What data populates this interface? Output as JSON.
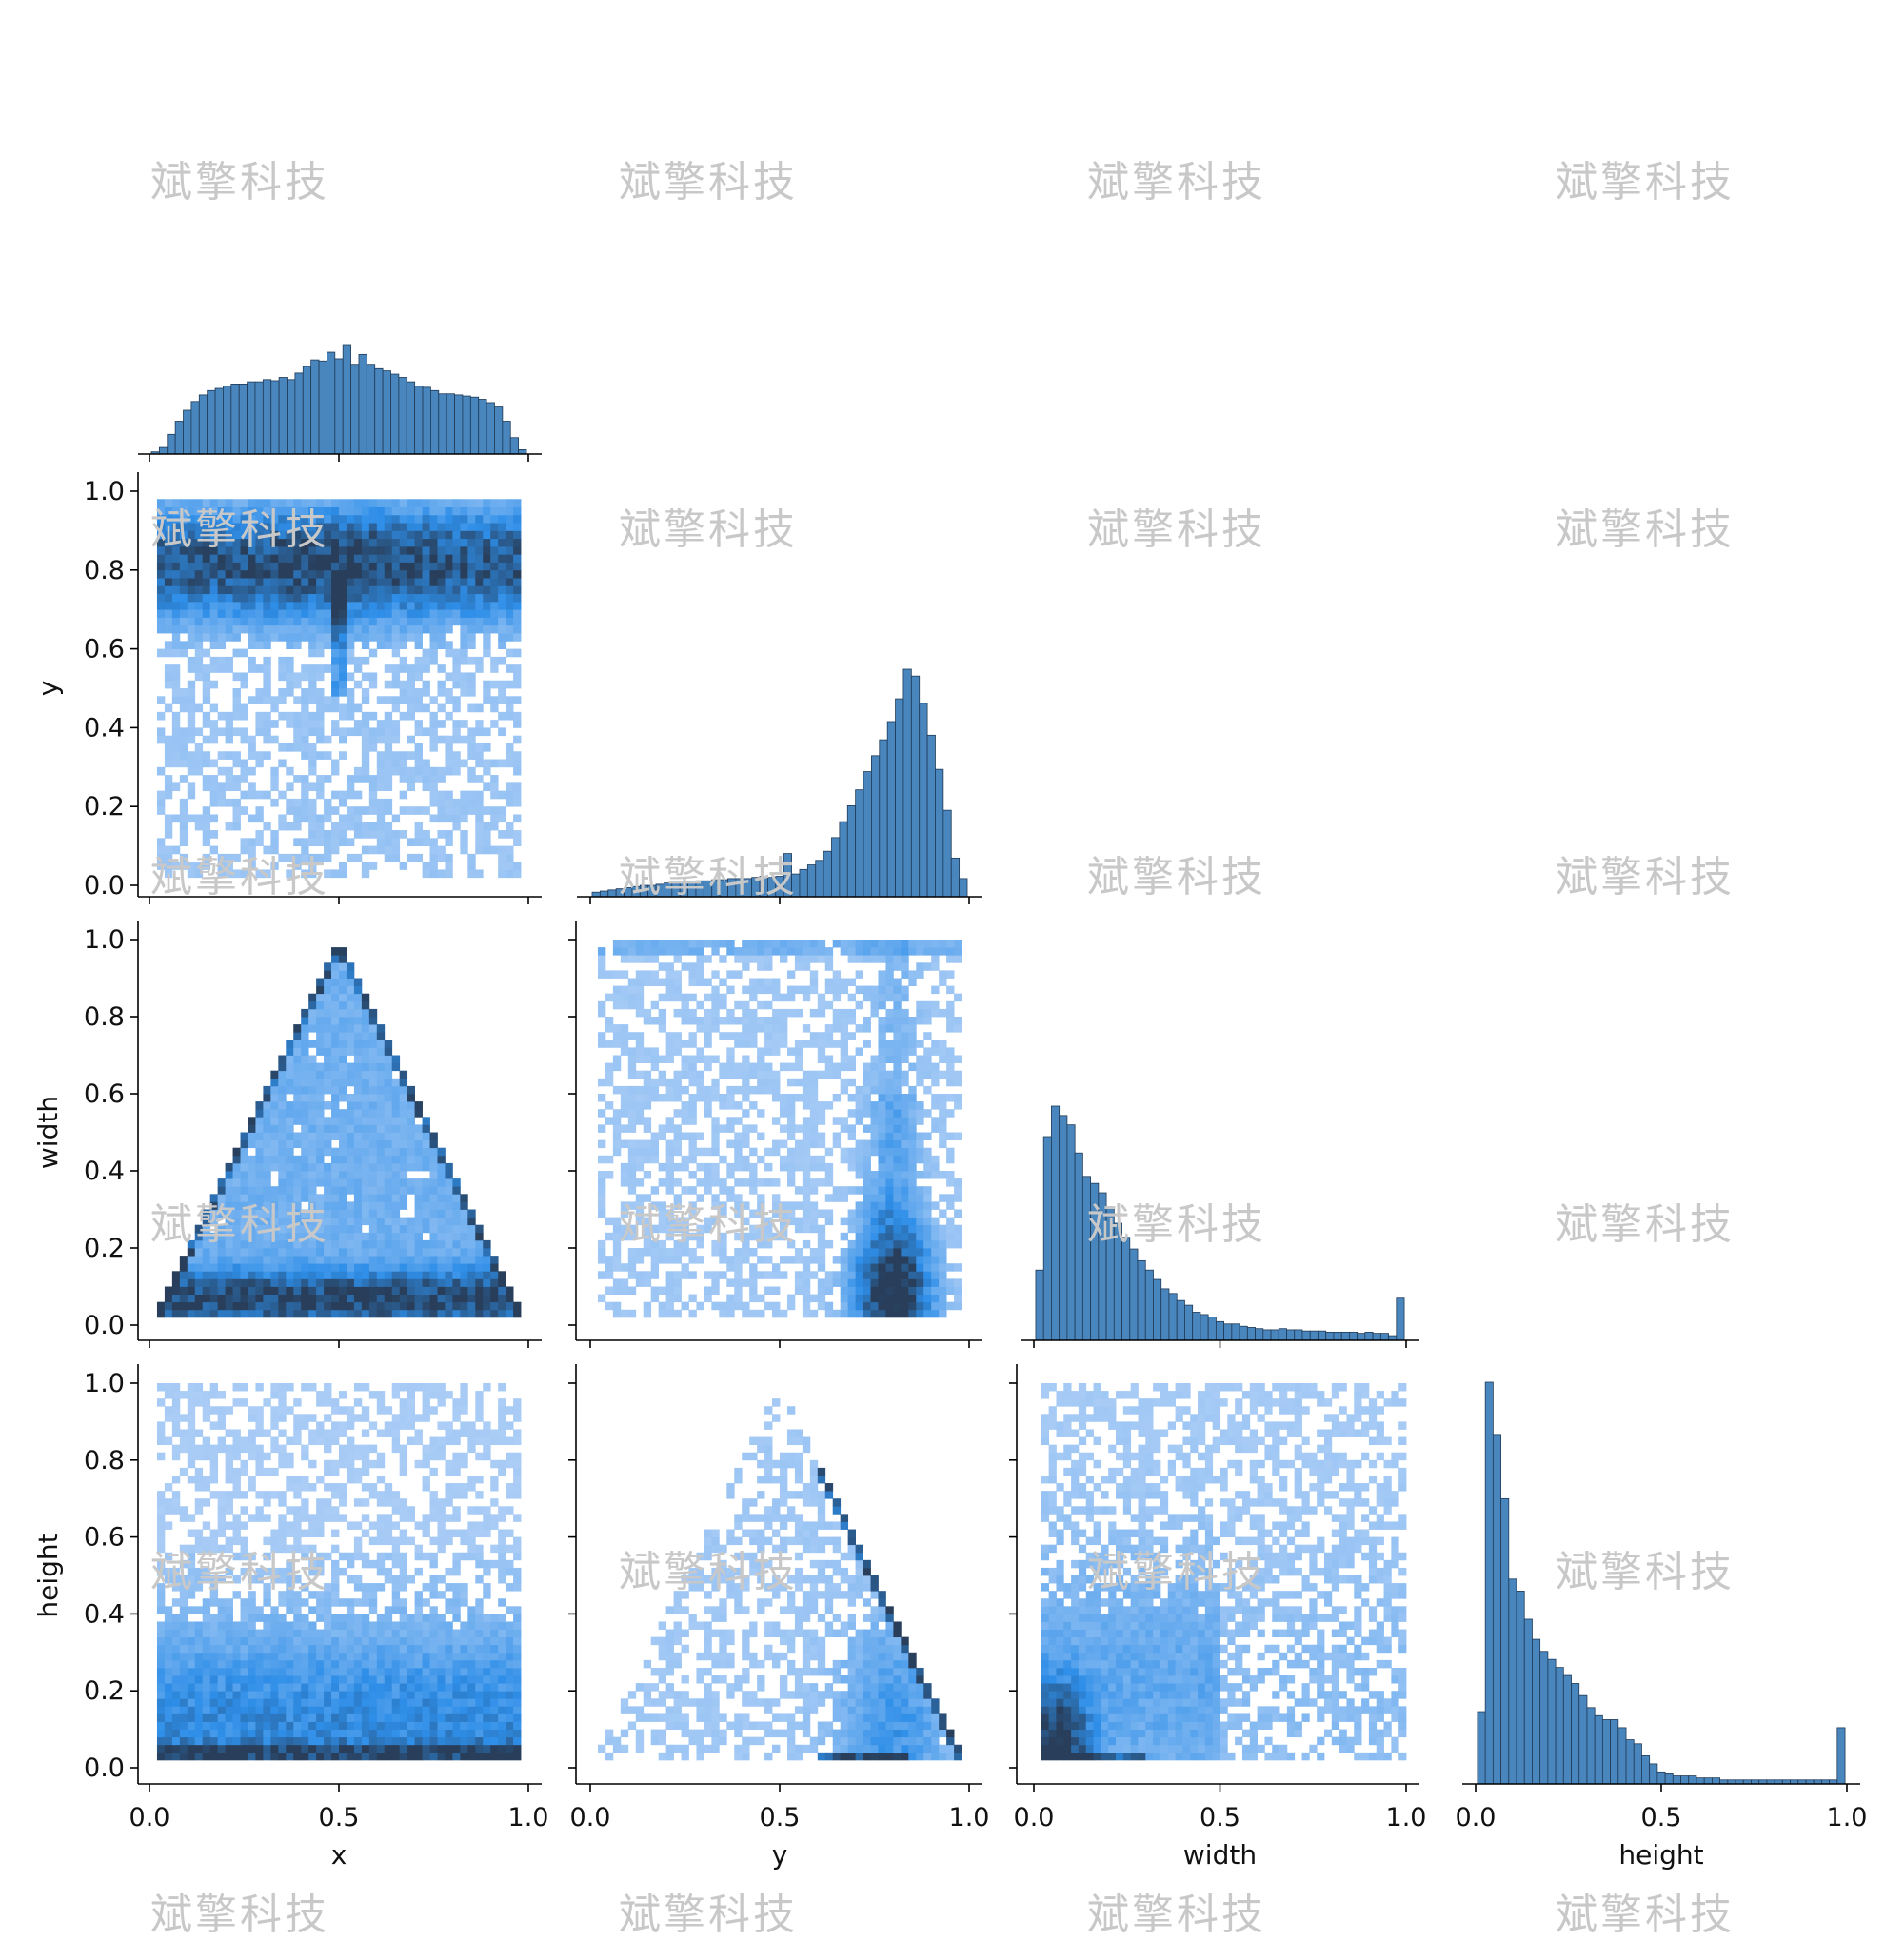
{
  "watermark": {
    "text": "斌擎科技",
    "color": "#c8c8c8"
  },
  "chart_data": {
    "type": "heatmap",
    "variables": [
      "x",
      "y",
      "width",
      "height"
    ],
    "axis_range": [
      0,
      1
    ],
    "x_ticks": [
      "0.0",
      "0.5",
      "1.0"
    ],
    "y_ticks": [
      "0.0",
      "0.2",
      "0.4",
      "0.6",
      "0.8",
      "1.0"
    ],
    "bar_color": "#4a86be",
    "bar_edge_color": "#1f3a56",
    "heatmap_colors": [
      "#b5d2f7",
      "#2e8ee8",
      "#283e5a"
    ],
    "histograms": {
      "x": [
        0.02,
        0.06,
        0.18,
        0.3,
        0.4,
        0.48,
        0.54,
        0.58,
        0.6,
        0.62,
        0.64,
        0.64,
        0.66,
        0.66,
        0.68,
        0.67,
        0.7,
        0.68,
        0.74,
        0.8,
        0.86,
        0.85,
        0.93,
        0.87,
        1.0,
        0.82,
        0.91,
        0.82,
        0.78,
        0.76,
        0.73,
        0.7,
        0.66,
        0.62,
        0.61,
        0.58,
        0.55,
        0.55,
        0.54,
        0.53,
        0.52,
        0.5,
        0.47,
        0.43,
        0.3,
        0.15,
        0.04
      ],
      "y": [
        0.02,
        0.025,
        0.03,
        0.035,
        0.04,
        0.045,
        0.05,
        0.05,
        0.055,
        0.06,
        0.06,
        0.065,
        0.065,
        0.07,
        0.07,
        0.075,
        0.075,
        0.08,
        0.08,
        0.08,
        0.085,
        0.09,
        0.085,
        0.09,
        0.19,
        0.1,
        0.12,
        0.14,
        0.16,
        0.2,
        0.26,
        0.33,
        0.4,
        0.47,
        0.55,
        0.62,
        0.69,
        0.77,
        0.87,
        1.0,
        0.97,
        0.85,
        0.71,
        0.56,
        0.38,
        0.17,
        0.08
      ],
      "width": [
        0.3,
        0.87,
        1.0,
        0.96,
        0.92,
        0.8,
        0.7,
        0.67,
        0.63,
        0.57,
        0.5,
        0.44,
        0.39,
        0.34,
        0.3,
        0.26,
        0.22,
        0.2,
        0.17,
        0.15,
        0.12,
        0.11,
        0.1,
        0.08,
        0.07,
        0.07,
        0.06,
        0.055,
        0.05,
        0.045,
        0.045,
        0.05,
        0.045,
        0.045,
        0.04,
        0.04,
        0.04,
        0.035,
        0.035,
        0.035,
        0.035,
        0.03,
        0.035,
        0.03,
        0.03,
        0.02,
        0.18
      ],
      "height": [
        0.18,
        1.0,
        0.87,
        0.71,
        0.51,
        0.48,
        0.41,
        0.36,
        0.33,
        0.31,
        0.29,
        0.27,
        0.25,
        0.22,
        0.19,
        0.17,
        0.16,
        0.16,
        0.14,
        0.11,
        0.1,
        0.07,
        0.05,
        0.03,
        0.025,
        0.02,
        0.02,
        0.02,
        0.015,
        0.015,
        0.015,
        0.01,
        0.01,
        0.01,
        0.01,
        0.01,
        0.01,
        0.01,
        0.01,
        0.01,
        0.01,
        0.01,
        0.01,
        0.01,
        0.01,
        0.01,
        0.14
      ]
    },
    "pair_density": [
      {
        "row": "y",
        "col": "x",
        "pattern": "band near y 0.8, vertical streak near x 0.5"
      },
      {
        "row": "width",
        "col": "x",
        "pattern": "triangle width <= 2*min(x,1-x), dense edges and low width"
      },
      {
        "row": "width",
        "col": "y",
        "pattern": "cluster near y 0.8 low width"
      },
      {
        "row": "height",
        "col": "x",
        "pattern": "dense near height 0.05"
      },
      {
        "row": "height",
        "col": "y",
        "pattern": "triangle height <= 2*min(y,1-y), dense right edge"
      },
      {
        "row": "height",
        "col": "width",
        "pattern": "cluster near origin"
      }
    ]
  }
}
